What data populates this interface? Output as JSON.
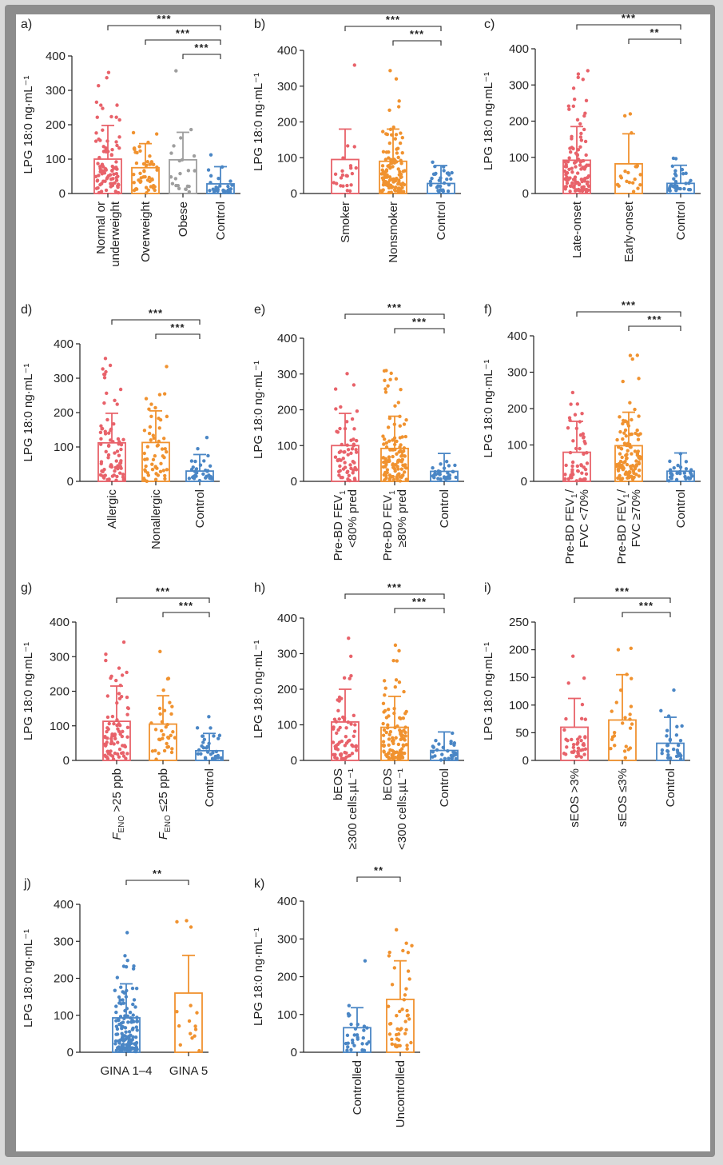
{
  "colors": {
    "red": "#e8626a",
    "orange": "#f0922f",
    "blue": "#4a86c5",
    "gray": "#9e9e9e",
    "axis": "#222222"
  },
  "chart_data": [
    {
      "label": "a)",
      "type": "bar",
      "ylabel": "LPG 18:0 ng·mL⁻¹",
      "ylim": [
        0,
        400
      ],
      "yticks": [
        0,
        100,
        200,
        300,
        400
      ],
      "groups": [
        {
          "name": [
            "Normal or",
            "underweight"
          ],
          "color": "red",
          "mean": 100,
          "sd": 198,
          "n": 90
        },
        {
          "name": [
            "Overweight"
          ],
          "color": "orange",
          "mean": 75,
          "sd": 145,
          "n": 50
        },
        {
          "name": [
            "Obese"
          ],
          "color": "gray",
          "mean": 98,
          "sd": 178,
          "n": 22
        },
        {
          "name": [
            "Control"
          ],
          "color": "blue",
          "mean": 28,
          "sd": 78,
          "n": 30
        }
      ],
      "significance": [
        {
          "from": 0,
          "to": 3,
          "text": "***"
        },
        {
          "from": 1,
          "to": 3,
          "text": "***"
        },
        {
          "from": 2,
          "to": 3,
          "text": "***"
        }
      ]
    },
    {
      "label": "b)",
      "type": "bar",
      "ylabel": "LPG 18:0 ng·mL⁻¹",
      "ylim": [
        0,
        400
      ],
      "yticks": [
        0,
        100,
        200,
        300,
        400
      ],
      "groups": [
        {
          "name": [
            "Smoker"
          ],
          "color": "red",
          "mean": 95,
          "sd": 180,
          "n": 22
        },
        {
          "name": [
            "Nonsmoker"
          ],
          "color": "orange",
          "mean": 90,
          "sd": 180,
          "n": 120
        },
        {
          "name": [
            "Control"
          ],
          "color": "blue",
          "mean": 28,
          "sd": 78,
          "n": 30
        }
      ],
      "significance": [
        {
          "from": 0,
          "to": 2,
          "text": "***"
        },
        {
          "from": 1,
          "to": 2,
          "text": "***"
        }
      ]
    },
    {
      "label": "c)",
      "type": "bar",
      "ylabel": "LPG 18:0 ng·mL⁻¹",
      "ylim": [
        0,
        400
      ],
      "yticks": [
        0,
        100,
        200,
        300,
        400
      ],
      "groups": [
        {
          "name": [
            "Late-onset"
          ],
          "color": "red",
          "mean": 92,
          "sd": 185,
          "n": 120
        },
        {
          "name": [
            "Early-onset"
          ],
          "color": "orange",
          "mean": 82,
          "sd": 165,
          "n": 22
        },
        {
          "name": [
            "Control"
          ],
          "color": "blue",
          "mean": 28,
          "sd": 78,
          "n": 30
        }
      ],
      "significance": [
        {
          "from": 0,
          "to": 2,
          "text": "***"
        },
        {
          "from": 1,
          "to": 2,
          "text": "**"
        }
      ]
    },
    {
      "label": "d)",
      "type": "bar",
      "ylabel": "LPG 18:0 ng·mL⁻¹",
      "ylim": [
        0,
        400
      ],
      "yticks": [
        0,
        100,
        200,
        300,
        400
      ],
      "groups": [
        {
          "name": [
            "Allergic"
          ],
          "color": "red",
          "mean": 112,
          "sd": 198,
          "n": 75
        },
        {
          "name": [
            "Nonallergic"
          ],
          "color": "orange",
          "mean": 113,
          "sd": 205,
          "n": 55
        },
        {
          "name": [
            "Control"
          ],
          "color": "blue",
          "mean": 30,
          "sd": 78,
          "n": 30
        }
      ],
      "significance": [
        {
          "from": 0,
          "to": 2,
          "text": "***"
        },
        {
          "from": 1,
          "to": 2,
          "text": "***"
        }
      ]
    },
    {
      "label": "e)",
      "type": "bar",
      "ylabel": "LPG 18:0 ng·mL⁻¹",
      "ylim": [
        0,
        400
      ],
      "yticks": [
        0,
        100,
        200,
        300,
        400
      ],
      "groups": [
        {
          "name": [
            "Pre-BD FEV₁",
            "<80% pred"
          ],
          "color": "red",
          "mean": 100,
          "sd": 190,
          "n": 60
        },
        {
          "name": [
            "Pre-BD FEV₁",
            "≥80% pred"
          ],
          "color": "orange",
          "mean": 92,
          "sd": 182,
          "n": 110
        },
        {
          "name": [
            "Control"
          ],
          "color": "blue",
          "mean": 28,
          "sd": 78,
          "n": 30
        }
      ],
      "significance": [
        {
          "from": 0,
          "to": 2,
          "text": "***"
        },
        {
          "from": 1,
          "to": 2,
          "text": "***"
        }
      ]
    },
    {
      "label": "f)",
      "type": "bar",
      "ylabel": "LPG 18:0 ng·mL⁻¹",
      "ylim": [
        0,
        400
      ],
      "yticks": [
        0,
        100,
        200,
        300,
        400
      ],
      "groups": [
        {
          "name": [
            "Pre-BD FEV₁/",
            "FVC <70%"
          ],
          "color": "red",
          "mean": 80,
          "sd": 165,
          "n": 50
        },
        {
          "name": [
            "Pre-BD FEV₁/",
            "FVC ≥70%"
          ],
          "color": "orange",
          "mean": 98,
          "sd": 190,
          "n": 110
        },
        {
          "name": [
            "Control"
          ],
          "color": "blue",
          "mean": 28,
          "sd": 78,
          "n": 30
        }
      ],
      "significance": [
        {
          "from": 0,
          "to": 2,
          "text": "***"
        },
        {
          "from": 1,
          "to": 2,
          "text": "***"
        }
      ]
    },
    {
      "label": "g)",
      "type": "bar",
      "ylabel": "LPG 18:0 ng·mL⁻¹",
      "ylim": [
        0,
        400
      ],
      "yticks": [
        0,
        100,
        200,
        300,
        400
      ],
      "groups": [
        {
          "name": [
            "FENO >25 ppb"
          ],
          "color": "red",
          "mean": 113,
          "sd": 215,
          "n": 80
        },
        {
          "name": [
            "FENO ≤25 ppb"
          ],
          "color": "orange",
          "mean": 105,
          "sd": 187,
          "n": 35
        },
        {
          "name": [
            "Control"
          ],
          "color": "blue",
          "mean": 28,
          "sd": 78,
          "n": 30
        }
      ],
      "significance": [
        {
          "from": 0,
          "to": 2,
          "text": "***"
        },
        {
          "from": 1,
          "to": 2,
          "text": "***"
        }
      ]
    },
    {
      "label": "h)",
      "type": "bar",
      "ylabel": "LPG 18:0 ng·mL⁻¹",
      "ylim": [
        0,
        400
      ],
      "yticks": [
        0,
        100,
        200,
        300,
        400
      ],
      "groups": [
        {
          "name": [
            "bEOS",
            "≥300 cells.µL⁻¹"
          ],
          "color": "red",
          "mean": 108,
          "sd": 200,
          "n": 65
        },
        {
          "name": [
            "bEOS",
            "<300 cells.µL⁻¹"
          ],
          "color": "orange",
          "mean": 93,
          "sd": 180,
          "n": 100
        },
        {
          "name": [
            "Control"
          ],
          "color": "blue",
          "mean": 28,
          "sd": 80,
          "n": 30
        }
      ],
      "significance": [
        {
          "from": 0,
          "to": 2,
          "text": "***"
        },
        {
          "from": 1,
          "to": 2,
          "text": "***"
        }
      ]
    },
    {
      "label": "i)",
      "type": "bar",
      "ylabel": "LPG 18:0 ng·mL⁻¹",
      "ylim": [
        0,
        250
      ],
      "yticks": [
        0,
        50,
        100,
        150,
        200,
        250
      ],
      "groups": [
        {
          "name": [
            "sEOS >3%"
          ],
          "color": "red",
          "mean": 60,
          "sd": 112,
          "n": 40
        },
        {
          "name": [
            "sEOS ≤3%"
          ],
          "color": "orange",
          "mean": 73,
          "sd": 155,
          "n": 25
        },
        {
          "name": [
            "Control"
          ],
          "color": "blue",
          "mean": 31,
          "sd": 78,
          "n": 30
        }
      ],
      "significance": [
        {
          "from": 0,
          "to": 2,
          "text": "***"
        },
        {
          "from": 1,
          "to": 2,
          "text": "***"
        }
      ]
    },
    {
      "label": "j)",
      "type": "bar",
      "ylabel": "LPG 18:0 ng·mL⁻¹",
      "ylim": [
        0,
        400
      ],
      "yticks": [
        0,
        100,
        200,
        300,
        400
      ],
      "groups": [
        {
          "name": [
            "GINA 1–4"
          ],
          "color": "blue",
          "mean": 93,
          "sd": 185,
          "n": 140
        },
        {
          "name": [
            "GINA 5"
          ],
          "color": "orange",
          "mean": 160,
          "sd": 262,
          "n": 15
        }
      ],
      "significance": [
        {
          "from": 0,
          "to": 1,
          "text": "**"
        }
      ]
    },
    {
      "label": "k)",
      "type": "bar",
      "ylabel": "LPG 18:0 ng·mL⁻¹",
      "ylim": [
        0,
        400
      ],
      "yticks": [
        0,
        100,
        200,
        300,
        400
      ],
      "groups": [
        {
          "name": [
            "Controlled"
          ],
          "color": "blue",
          "mean": 65,
          "sd": 118,
          "n": 30
        },
        {
          "name": [
            "Uncontrolled"
          ],
          "color": "orange",
          "mean": 140,
          "sd": 242,
          "n": 45
        }
      ],
      "significance": [
        {
          "from": 0,
          "to": 1,
          "text": "**"
        }
      ]
    }
  ]
}
